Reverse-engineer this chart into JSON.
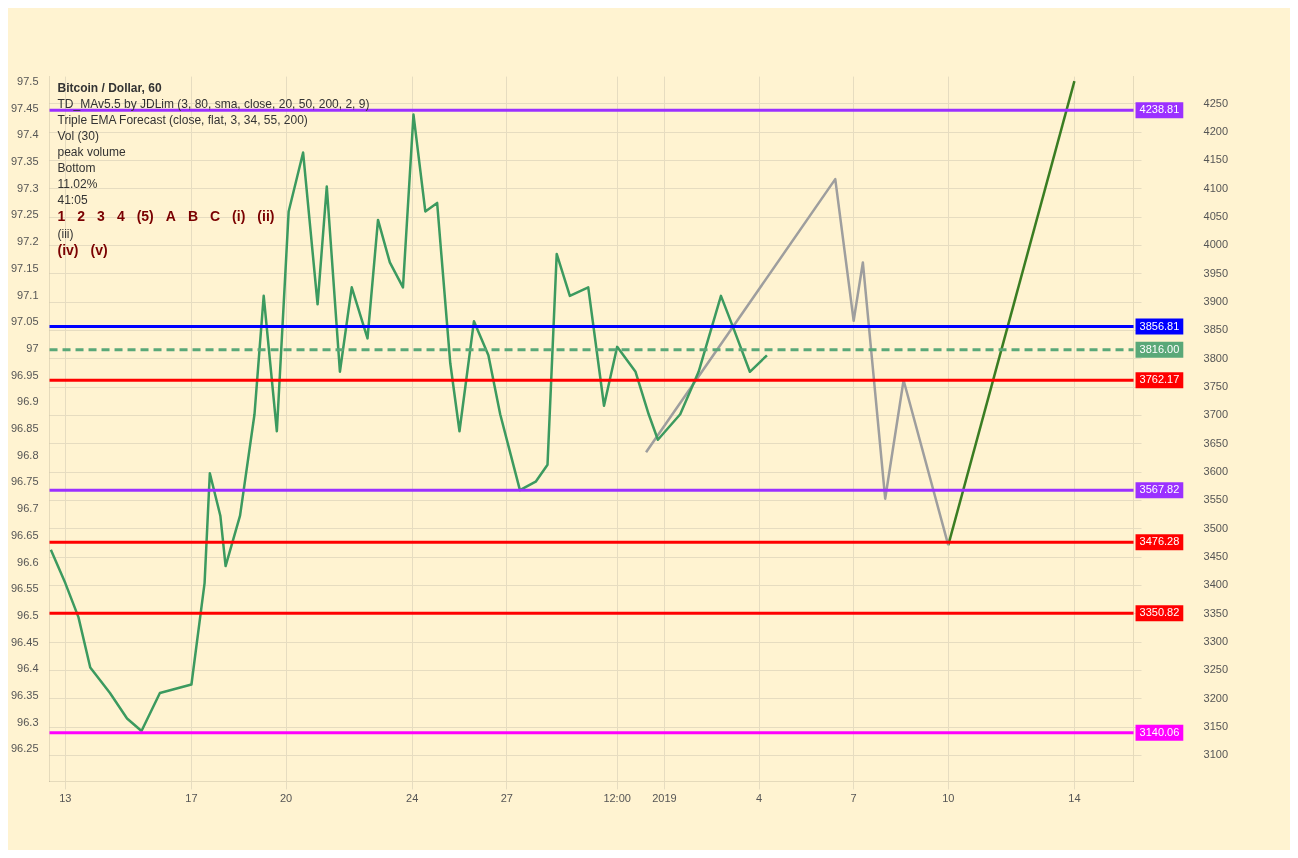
{
  "chart_data": {
    "type": "line",
    "title": "Bitcoin / Dollar, 60",
    "subtitle": "TD_MAv5.5 by JDLim (3, 80, sma, close, 20, 50, 200, 2, 9)",
    "xlim": [
      "2018-12-12T12:00",
      "2019-01-15T21:00"
    ],
    "xticks": [
      {
        "value": "2018-12-13",
        "label": "13"
      },
      {
        "value": "2018-12-17",
        "label": "17"
      },
      {
        "value": "2018-12-20",
        "label": "20"
      },
      {
        "value": "2018-12-24",
        "label": "24"
      },
      {
        "value": "2018-12-27",
        "label": "27"
      },
      {
        "value": "2018-12-30T12:00",
        "label": "12:00"
      },
      {
        "value": "2019-01-01",
        "label": "2019"
      },
      {
        "value": "2019-01-04",
        "label": "4"
      },
      {
        "value": "2019-01-07",
        "label": "7"
      },
      {
        "value": "2019-01-10",
        "label": "10"
      },
      {
        "value": "2019-01-14",
        "label": "14"
      }
    ],
    "ylim": [
      96.19,
      97.51
    ],
    "yticks": [
      96.25,
      96.3,
      96.35,
      96.4,
      96.45,
      96.5,
      96.55,
      96.6,
      96.65,
      96.7,
      96.75,
      96.8,
      96.85,
      96.9,
      96.95,
      97.0,
      97.05,
      97.1,
      97.15,
      97.2,
      97.25,
      97.3,
      97.35,
      97.4,
      97.45,
      97.5
    ],
    "y2lim": [
      3054,
      4298
    ],
    "y2ticks": [
      3100,
      3150,
      3200,
      3250,
      3300,
      3350,
      3400,
      3450,
      3500,
      3550,
      3600,
      3650,
      3700,
      3750,
      3800,
      3850,
      3900,
      3950,
      4000,
      4050,
      4100,
      4150,
      4200,
      4250
    ],
    "grid": true,
    "marker": "none",
    "series": [
      {
        "color": "#3c9a5f",
        "axis": "y2",
        "x": [
          "2018-12-12T13:00",
          "2018-12-13T00:00",
          "2018-12-13T10:00",
          "2018-12-13T19:00",
          "2018-12-14T10:00",
          "2018-12-14T23:00",
          "2018-12-15T10:00",
          "2018-12-16T00:00",
          "2018-12-17T00:00",
          "2018-12-17T10:00",
          "2018-12-17T14:00",
          "2018-12-17T22:00",
          "2018-12-18T02:00",
          "2018-12-18T13:00",
          "2018-12-19T00:00",
          "2018-12-19T07:00",
          "2018-12-19T17:00",
          "2018-12-20T02:00",
          "2018-12-20T13:00",
          "2018-12-21T00:00",
          "2018-12-21T07:00",
          "2018-12-21T17:00",
          "2018-12-22T02:00",
          "2018-12-22T14:00",
          "2018-12-22T22:00",
          "2018-12-23T07:00",
          "2018-12-23T17:00",
          "2018-12-24T01:00",
          "2018-12-24T10:00",
          "2018-12-24T19:00",
          "2018-12-25T05:00",
          "2018-12-25T12:00",
          "2018-12-25T23:00",
          "2018-12-26T10:00",
          "2018-12-26T19:00",
          "2018-12-27T10:00",
          "2018-12-27T22:00",
          "2018-12-28T07:00",
          "2018-12-28T14:00",
          "2018-12-29T00:00",
          "2018-12-29T14:00",
          "2018-12-30T02:00",
          "2018-12-30T12:00",
          "2018-12-31T02:00",
          "2018-12-31T12:00",
          "2018-12-31T19:00",
          "2019-01-01T12:00",
          "2019-01-02T02:00",
          "2019-01-02T19:00",
          "2019-01-03T05:00",
          "2019-01-03T17:00",
          "2019-01-04T06:00"
        ],
        "values": [
          3463,
          3404,
          3344,
          3255,
          3210,
          3165,
          3143,
          3210,
          3225,
          3404,
          3598,
          3523,
          3434,
          3523,
          3702,
          3911,
          3672,
          4060,
          4164,
          3896,
          4104,
          3777,
          3926,
          3836,
          4045,
          3970,
          3926,
          4231,
          4060,
          4075,
          3792,
          3672,
          3866,
          3806,
          3702,
          3568,
          3583,
          3613,
          3985,
          3911,
          3926,
          3717,
          3821,
          3777,
          3702,
          3657,
          3702,
          3777,
          3911,
          3851,
          3777,
          3806
        ]
      },
      {
        "color": "#9e9e9e",
        "axis": "y2",
        "x": [
          "2018-12-31T10:00",
          "2019-01-06T10:00",
          "2019-01-07T00:00",
          "2019-01-07T07:00",
          "2019-01-08T00:00",
          "2019-01-08T14:00",
          "2019-01-10T00:00"
        ],
        "values": [
          3635,
          4117,
          3867,
          3970,
          3553,
          3762,
          3471
        ]
      },
      {
        "color": "#3a7d22",
        "axis": "y2",
        "x": [
          "2019-01-10T00:00",
          "2019-01-14T00:00"
        ],
        "values": [
          3471,
          4290
        ]
      }
    ],
    "ref_lines": [
      {
        "axis": "y2",
        "value": 4238.81,
        "label": "4238.81",
        "color": "#9b30ff"
      },
      {
        "axis": "y2",
        "value": 3856.81,
        "label": "3856.81",
        "color": "#0000ff"
      },
      {
        "axis": "y2",
        "value": 3816.0,
        "label": "3816.00",
        "color": "#5aa878",
        "line_style": "dashed"
      },
      {
        "axis": "y2",
        "value": 3762.17,
        "label": "3762.17",
        "color": "#ff0000"
      },
      {
        "axis": "y2",
        "value": 3567.82,
        "label": "3567.82",
        "color": "#9b30ff"
      },
      {
        "axis": "y2",
        "value": 3476.28,
        "label": "3476.28",
        "color": "#ff0000"
      },
      {
        "axis": "y2",
        "value": 3350.82,
        "label": "3350.82",
        "color": "#ff0000"
      },
      {
        "axis": "y2",
        "value": 3140.06,
        "label": "3140.06",
        "color": "#ff00ff"
      }
    ],
    "annotations": [
      "Triple EMA Forecast (close, flat, 3, 34, 55, 200)",
      "Vol (30)",
      "peak volume",
      "Bottom",
      "11.02%",
      "41:05",
      "1",
      "2",
      "3",
      "4",
      "(5)",
      "A",
      "B",
      "C",
      "(i)",
      "(ii)",
      "(iii)",
      "(iv)",
      "(v)"
    ]
  }
}
